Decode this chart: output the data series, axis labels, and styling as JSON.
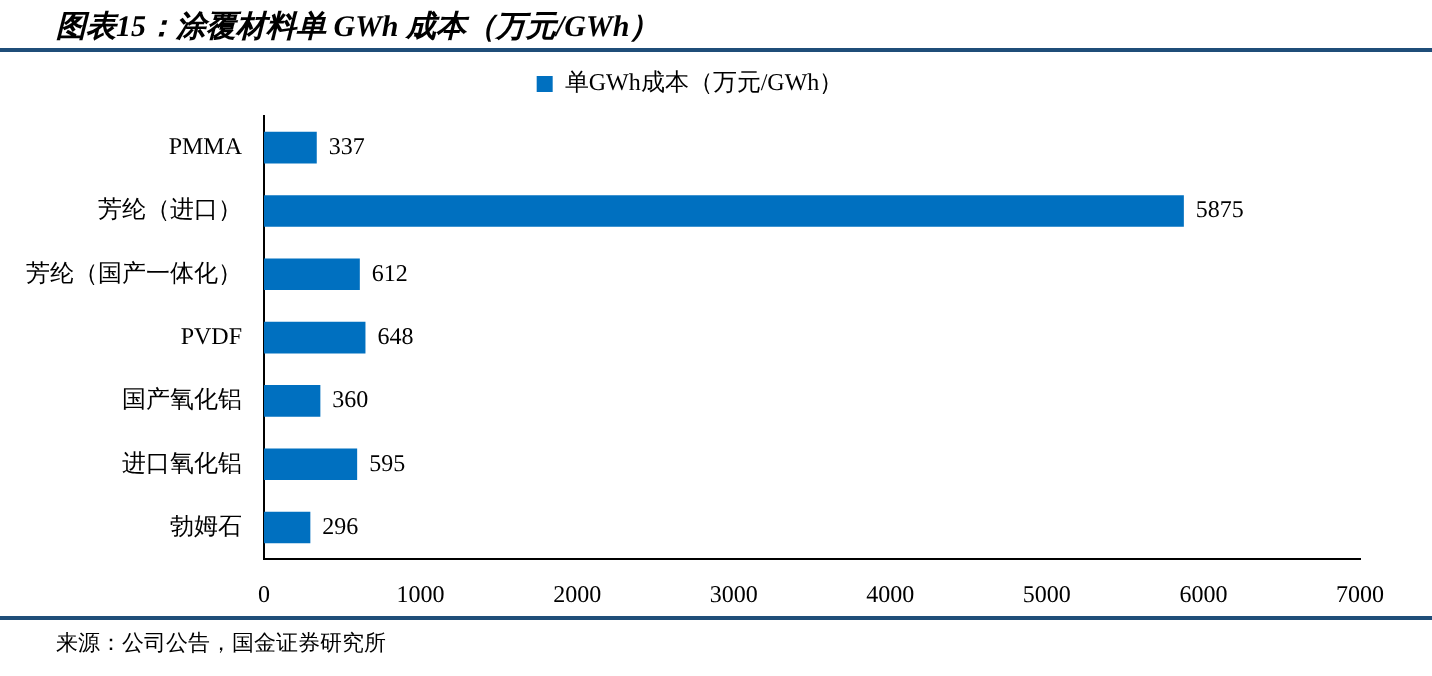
{
  "chart_data": {
    "type": "bar",
    "orientation": "horizontal",
    "title": "图表15：涂覆材料单 GWh 成本（万元/GWh）",
    "categories": [
      "PMMA",
      "芳纶（进口）",
      "芳纶（国产一体化）",
      "PVDF",
      "国产氧化铝",
      "进口氧化铝",
      "勃姆石"
    ],
    "series": [
      {
        "name": "单GWh成本（万元/GWh）",
        "color": "#0070c0",
        "values": [
          337,
          5875,
          612,
          648,
          360,
          595,
          296
        ]
      }
    ],
    "xlim": [
      0,
      7000
    ],
    "xticks": [
      0,
      1000,
      2000,
      3000,
      4000,
      5000,
      6000,
      7000
    ],
    "grid": false,
    "legend": "top",
    "data_labels": true,
    "annotations": [
      "来源：公司公告，国金证券研究所"
    ]
  }
}
